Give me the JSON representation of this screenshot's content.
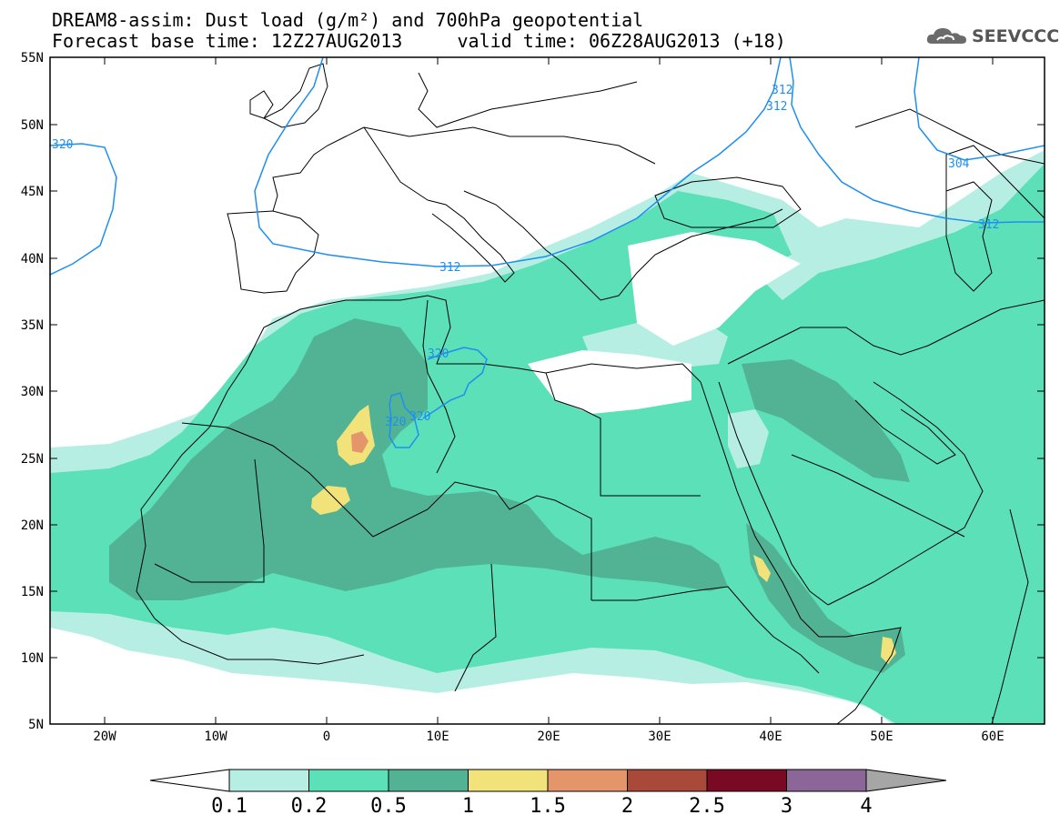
{
  "header": {
    "line1": "DREAM8-assim: Dust load (g/m²) and 700hPa geopotential",
    "line2": "Forecast base time: 12Z27AUG2013     valid time: 06Z28AUG2013 (+18)",
    "logo_text": "SEEVCCC",
    "logo_icon": "cloud-icon"
  },
  "map": {
    "lon_labels": [
      "20W",
      "10W",
      "0",
      "10E",
      "20E",
      "30E",
      "40E",
      "50E",
      "60E"
    ],
    "lat_labels": [
      "55N",
      "50N",
      "45N",
      "40N",
      "35N",
      "30N",
      "25N",
      "20N",
      "15N",
      "10N",
      "5N"
    ],
    "contour_labels": [
      "320",
      "312",
      "312",
      "312",
      "304",
      "312",
      "320",
      "320",
      "320"
    ],
    "colors": {
      "frame": "#000000",
      "coast": "#000000",
      "contour": "#1e8ff0"
    }
  },
  "legend": {
    "labels": [
      "0.1",
      "0.2",
      "0.5",
      "1",
      "1.5",
      "2",
      "2.5",
      "3",
      "4"
    ],
    "colors": [
      "#b7eee3",
      "#5ce0b8",
      "#52b394",
      "#f2e27a",
      "#e4956a",
      "#a9493a",
      "#7a0a24",
      "#8c6698",
      "#a6a6a6"
    ]
  }
}
